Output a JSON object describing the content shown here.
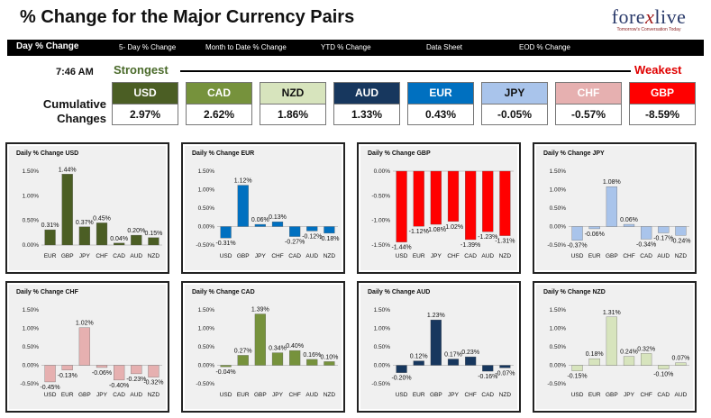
{
  "header": {
    "title": "% Change for the Major Currency Pairs",
    "logo_text_a": "fore",
    "logo_text_x": "x",
    "logo_text_b": "live",
    "logo_tag": "Tomorrow's Conversation Today"
  },
  "nav": {
    "items": [
      "Day % Change",
      "5- Day % Change",
      "Month to Date % Change",
      "YTD % Change",
      "Data Sheet",
      "EOD % Change"
    ]
  },
  "strength": {
    "time": "7:46 AM",
    "strongest": "Strongest",
    "weakest": "Weakest",
    "cumulative_label_1": "Cumulative",
    "cumulative_label_2": "Changes",
    "currencies": [
      {
        "code": "USD",
        "value": "2.97%",
        "color": "#4b5e24",
        "text_color": "#ffffff"
      },
      {
        "code": "CAD",
        "value": "2.62%",
        "color": "#76923c",
        "text_color": "#ffffff"
      },
      {
        "code": "NZD",
        "value": "1.86%",
        "color": "#d7e4bd",
        "text_color": "#111111"
      },
      {
        "code": "AUD",
        "value": "1.33%",
        "color": "#17375e",
        "text_color": "#ffffff"
      },
      {
        "code": "EUR",
        "value": "0.43%",
        "color": "#0070c0",
        "text_color": "#ffffff"
      },
      {
        "code": "JPY",
        "value": "-0.05%",
        "color": "#a9c4eb",
        "text_color": "#111111"
      },
      {
        "code": "CHF",
        "value": "-0.57%",
        "color": "#e6b0b0",
        "text_color": "#ffffff"
      },
      {
        "code": "GBP",
        "value": "-8.59%",
        "color": "#ff0000",
        "text_color": "#ffffff"
      }
    ]
  },
  "chart_data": [
    {
      "type": "bar",
      "title": "Daily % Change USD",
      "categories": [
        "EUR",
        "GBP",
        "JPY",
        "CHF",
        "CAD",
        "AUD",
        "NZD"
      ],
      "values": [
        0.31,
        1.44,
        0.37,
        0.45,
        0.04,
        0.2,
        0.15
      ],
      "labels": [
        "0.31%",
        "1.44%",
        "0.37%",
        "0.45%",
        "0.04%",
        "0.20%",
        "0.15%"
      ],
      "yticks": [
        "1.50%",
        "1.00%",
        "0.50%",
        "0.00%"
      ],
      "ylim": [
        0,
        1.5
      ],
      "color": "#4b5e24"
    },
    {
      "type": "bar",
      "title": "Daily % Change EUR",
      "categories": [
        "USD",
        "GBP",
        "JPY",
        "CHF",
        "CAD",
        "AUD",
        "NZD"
      ],
      "values": [
        -0.31,
        1.12,
        0.06,
        0.13,
        -0.27,
        -0.12,
        -0.18
      ],
      "labels": [
        "-0.31%",
        "1.12%",
        "0.06%",
        "0.13%",
        "-0.27%",
        "-0.12%",
        "-0.18%"
      ],
      "yticks": [
        "1.50%",
        "1.00%",
        "0.50%",
        "0.00%",
        "-0.50%"
      ],
      "ylim": [
        -0.5,
        1.5
      ],
      "color": "#0070c0"
    },
    {
      "type": "bar",
      "title": "Daily % Change GBP",
      "categories": [
        "USD",
        "EUR",
        "JPY",
        "CHF",
        "CAD",
        "AUD",
        "NZD"
      ],
      "values": [
        -1.44,
        -1.12,
        -1.08,
        -1.02,
        -1.39,
        -1.23,
        -1.31
      ],
      "labels": [
        "-1.44%",
        "-1.12%",
        "-1.08%",
        "-1.02%",
        "-1.39%",
        "-1.23%",
        "-1.31%"
      ],
      "yticks": [
        "0.00%",
        "-0.50%",
        "-1.00%",
        "-1.50%"
      ],
      "ylim": [
        -1.5,
        0
      ],
      "color": "#ff0000"
    },
    {
      "type": "bar",
      "title": "Daily % Change JPY",
      "categories": [
        "USD",
        "EUR",
        "GBP",
        "CHF",
        "CAD",
        "AUD",
        "NZD"
      ],
      "values": [
        -0.37,
        -0.06,
        1.08,
        0.06,
        -0.34,
        -0.17,
        -0.24
      ],
      "labels": [
        "-0.37%",
        "-0.06%",
        "1.08%",
        "0.06%",
        "-0.34%",
        "-0.17%",
        "-0.24%"
      ],
      "yticks": [
        "1.50%",
        "1.00%",
        "0.50%",
        "0.00%",
        "-0.50%"
      ],
      "ylim": [
        -0.5,
        1.5
      ],
      "color": "#a9c4eb"
    },
    {
      "type": "bar",
      "title": "Daily % Change CHF",
      "categories": [
        "USD",
        "EUR",
        "GBP",
        "JPY",
        "CAD",
        "AUD",
        "NZD"
      ],
      "values": [
        -0.45,
        -0.13,
        1.02,
        -0.06,
        -0.4,
        -0.23,
        -0.32
      ],
      "labels": [
        "-0.45%",
        "-0.13%",
        "1.02%",
        "-0.06%",
        "-0.40%",
        "-0.23%",
        "-0.32%"
      ],
      "yticks": [
        "1.50%",
        "1.00%",
        "0.50%",
        "0.00%",
        "-0.50%"
      ],
      "ylim": [
        -0.5,
        1.5
      ],
      "color": "#e6b0b0"
    },
    {
      "type": "bar",
      "title": "Daily % Change CAD",
      "categories": [
        "USD",
        "EUR",
        "GBP",
        "JPY",
        "CHF",
        "AUD",
        "NZD"
      ],
      "values": [
        -0.04,
        0.27,
        1.39,
        0.34,
        0.4,
        0.16,
        0.1
      ],
      "labels": [
        "-0.04%",
        "0.27%",
        "1.39%",
        "0.34%",
        "0.40%",
        "0.16%",
        "0.10%"
      ],
      "yticks": [
        "1.50%",
        "1.00%",
        "0.50%",
        "0.00%",
        "-0.50%"
      ],
      "ylim": [
        -0.5,
        1.5
      ],
      "color": "#76923c"
    },
    {
      "type": "bar",
      "title": "Daily % Change AUD",
      "categories": [
        "USD",
        "EUR",
        "GBP",
        "JPY",
        "CHF",
        "CAD",
        "NZD"
      ],
      "values": [
        -0.2,
        0.12,
        1.23,
        0.17,
        0.23,
        -0.16,
        -0.07
      ],
      "labels": [
        "-0.20%",
        "0.12%",
        "1.23%",
        "0.17%",
        "0.23%",
        "-0.16%",
        "-0.07%"
      ],
      "yticks": [
        "1.50%",
        "1.00%",
        "0.50%",
        "0.00%",
        "-0.50%"
      ],
      "ylim": [
        -0.5,
        1.5
      ],
      "color": "#17375e"
    },
    {
      "type": "bar",
      "title": "Daily % Change NZD",
      "categories": [
        "USD",
        "EUR",
        "GBP",
        "JPY",
        "CHF",
        "CAD",
        "AUD"
      ],
      "values": [
        -0.15,
        0.18,
        1.31,
        0.24,
        0.32,
        -0.1,
        0.07
      ],
      "labels": [
        "-0.15%",
        "0.18%",
        "1.31%",
        "0.24%",
        "0.32%",
        "-0.10%",
        "0.07%"
      ],
      "yticks": [
        "1.50%",
        "1.00%",
        "0.50%",
        "0.00%",
        "-0.50%"
      ],
      "ylim": [
        -0.5,
        1.5
      ],
      "color": "#d7e4bd"
    }
  ]
}
